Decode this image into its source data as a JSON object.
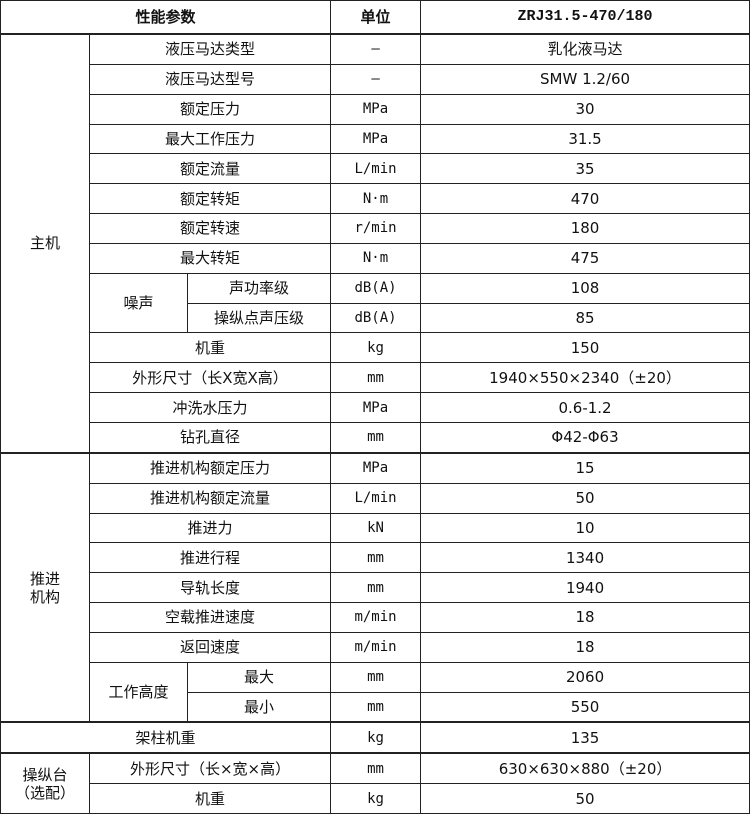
{
  "header": {
    "param": "性能参数",
    "unit": "单位",
    "model": "ZRJ31.5-470/180"
  },
  "groups": [
    {
      "label": "主机",
      "rows": [
        {
          "param": "液压马达类型",
          "unit": "—",
          "value": "乳化液马达"
        },
        {
          "param": "液压马达型号",
          "unit": "—",
          "value": "SMW 1.2/60"
        },
        {
          "param": "额定压力",
          "unit": "MPa",
          "value": "30"
        },
        {
          "param": "最大工作压力",
          "unit": "MPa",
          "value": "31.5"
        },
        {
          "param": "额定流量",
          "unit": "L/min",
          "value": "35"
        },
        {
          "param": "额定转矩",
          "unit": "N·m",
          "value": "470"
        },
        {
          "param": "额定转速",
          "unit": "r/min",
          "value": "180"
        },
        {
          "param": "最大转矩",
          "unit": "N·m",
          "value": "475"
        },
        {
          "sub": "噪声",
          "param": "声功率级",
          "unit": "dB(A)",
          "value": "108"
        },
        {
          "sub": "噪声",
          "param": "操纵点声压级",
          "unit": "dB(A)",
          "value": "85"
        },
        {
          "param": "机重",
          "unit": "kg",
          "value": "150"
        },
        {
          "param": "外形尺寸（长X宽X高）",
          "unit": "mm",
          "value": "1940×550×2340（±20）"
        },
        {
          "param": "冲洗水压力",
          "unit": "MPa",
          "value": "0.6-1.2"
        },
        {
          "param": "钻孔直径",
          "unit": "mm",
          "value": "Φ42-Φ63"
        }
      ]
    },
    {
      "label": "推进\n机构",
      "rows": [
        {
          "param": "推进机构额定压力",
          "unit": "MPa",
          "value": "15"
        },
        {
          "param": "推进机构额定流量",
          "unit": "L/min",
          "value": "50"
        },
        {
          "param": "推进力",
          "unit": "kN",
          "value": "10"
        },
        {
          "param": "推进行程",
          "unit": "mm",
          "value": "1340"
        },
        {
          "param": "导轨长度",
          "unit": "mm",
          "value": "1940"
        },
        {
          "param": "空载推进速度",
          "unit": "m/min",
          "value": "18"
        },
        {
          "param": "返回速度",
          "unit": "m/min",
          "value": "18"
        },
        {
          "sub": "工作高度",
          "param": "最大",
          "unit": "mm",
          "value": "2060"
        },
        {
          "sub": "工作高度",
          "param": "最小",
          "unit": "mm",
          "value": "550"
        }
      ]
    },
    {
      "label": "",
      "rows": [
        {
          "param": "架柱机重",
          "unit": "kg",
          "value": "135"
        }
      ]
    },
    {
      "label": "操纵台\n（选配）",
      "rows": [
        {
          "param": "外形尺寸（长×宽×高）",
          "unit": "mm",
          "value": "630×630×880（±20）"
        },
        {
          "param": "机重",
          "unit": "kg",
          "value": "50"
        }
      ]
    }
  ]
}
